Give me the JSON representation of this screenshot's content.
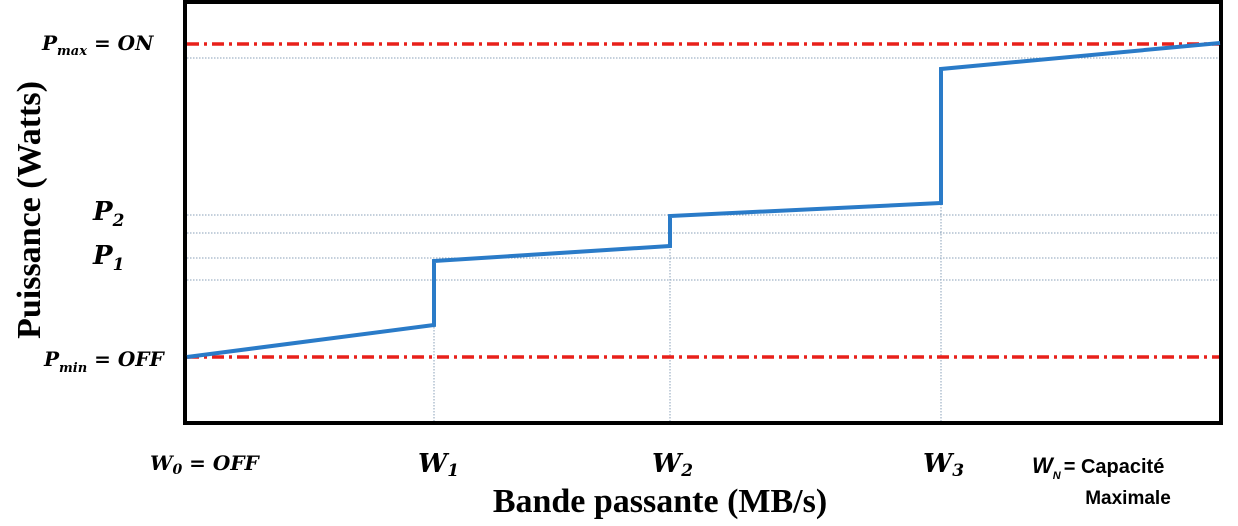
{
  "y_axis": {
    "label": "Puissance (Watts)",
    "levels": [
      {
        "symbol": "P",
        "sub": "max",
        "rest": " = ON"
      },
      {
        "symbol": "P",
        "sub": "2"
      },
      {
        "symbol": "P",
        "sub": "1"
      },
      {
        "symbol": "P",
        "sub": "min",
        "rest": " = OFF"
      }
    ]
  },
  "x_axis": {
    "label": "Bande passante (MB/s)",
    "levels": [
      {
        "symbol": "W",
        "sub": "0",
        "rest": " = OFF"
      },
      {
        "symbol": "W",
        "sub": "1"
      },
      {
        "symbol": "W",
        "sub": "2"
      },
      {
        "symbol": "W",
        "sub": "3"
      },
      {
        "symbol": "W",
        "sub": "N",
        "rest": "= Capacité",
        "rest2": "Maximale"
      }
    ]
  }
}
